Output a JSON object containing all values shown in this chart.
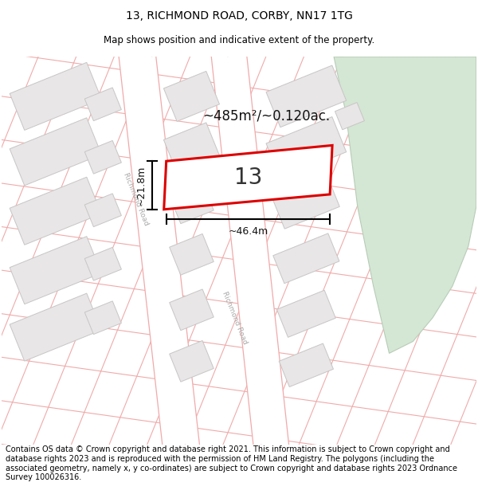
{
  "title": "13, RICHMOND ROAD, CORBY, NN17 1TG",
  "subtitle": "Map shows position and indicative extent of the property.",
  "footer": "Contains OS data © Crown copyright and database right 2021. This information is subject to Crown copyright and database rights 2023 and is reproduced with the permission of HM Land Registry. The polygons (including the associated geometry, namely x, y co-ordinates) are subject to Crown copyright and database rights 2023 Ordnance Survey 100026316.",
  "area_text": "~485m²/~0.120ac.",
  "width_text": "~46.4m",
  "height_text": "~21.8m",
  "number_text": "13",
  "map_bg": "#f7f3f3",
  "plot_line_color": "#f0aaaa",
  "building_fill": "#e8e6e6",
  "building_outline": "#c8c5c5",
  "highlight_fill": "#ffffff",
  "highlight_outline": "#dd0000",
  "green_color": "#d4e6d4",
  "green_outline": "#b8ccb8",
  "road_fill": "#ffffff",
  "road_label_color": "#aaaaaa",
  "title_fontsize": 10,
  "subtitle_fontsize": 8.5,
  "footer_fontsize": 7.0
}
